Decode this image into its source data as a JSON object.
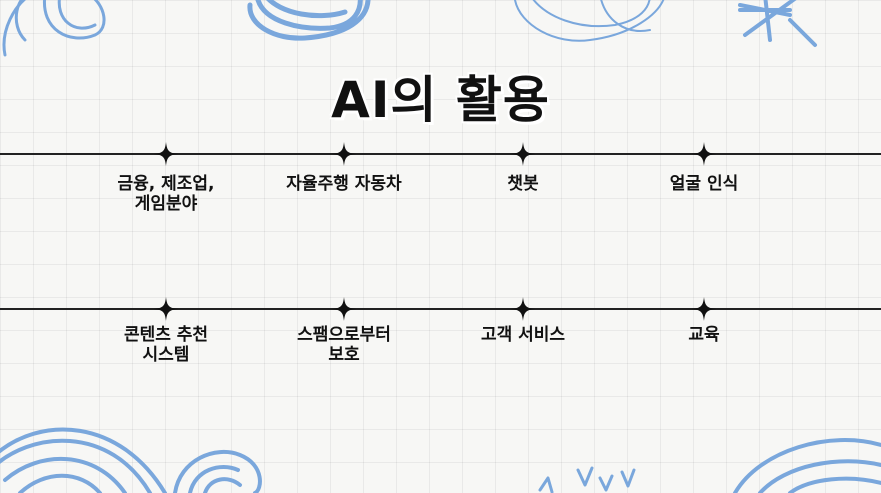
{
  "title": "AI의 활용",
  "row1": [
    {
      "line1": "금융, 제조업,",
      "line2": "게임분야"
    },
    {
      "line1": "자율주행 자동차",
      "line2": ""
    },
    {
      "line1": "챗봇",
      "line2": ""
    },
    {
      "line1": "얼굴 인식",
      "line2": ""
    }
  ],
  "row2": [
    {
      "line1": "콘텐츠 추천",
      "line2": "시스템"
    },
    {
      "line1": "스팸으로부터",
      "line2": "보호"
    },
    {
      "line1": "고객 서비스",
      "line2": ""
    },
    {
      "line1": "교육",
      "line2": ""
    }
  ],
  "colors": {
    "doodle": "#7aa7dc",
    "line": "#222222",
    "background": "#f7f7f5"
  }
}
